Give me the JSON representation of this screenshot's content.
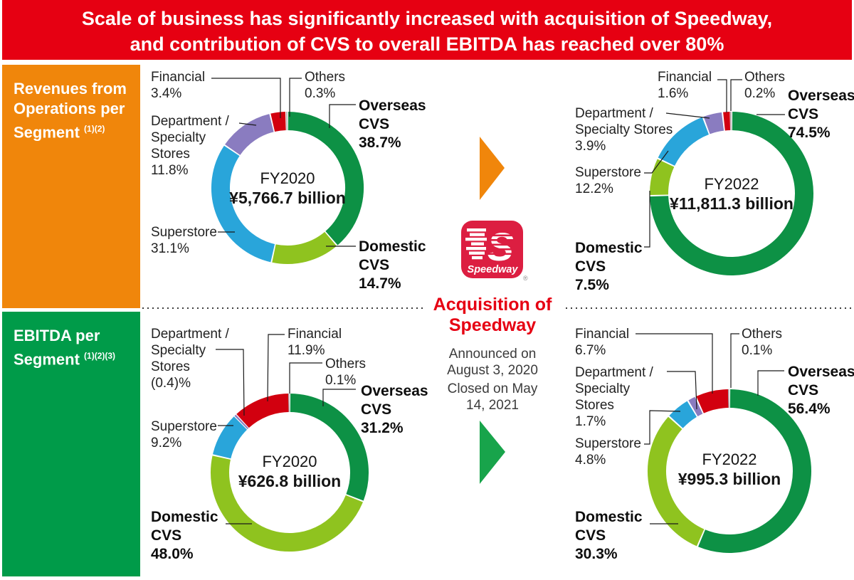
{
  "header": {
    "line1": "Scale of business has significantly increased with acquisition of Speedway,",
    "line2": "and contribution of CVS to overall EBITDA has reached over 80%"
  },
  "sidebar": {
    "revenues": {
      "title": "Revenues from Operations per Segment",
      "superscript": "(1)(2)"
    },
    "ebitda": {
      "title": "EBITDA per Segment",
      "superscript": "(1)(2)(3)"
    }
  },
  "middle": {
    "logo_letter": "S",
    "logo_text": "Speedway",
    "registered_mark": "®",
    "title_line1": "Acquisition of",
    "title_line2": "Speedway",
    "announced_line1": "Announced on",
    "announced_line2": "August 3, 2020",
    "closed_line1": "Closed on May",
    "closed_line2": "14, 2021"
  },
  "colors": {
    "header_red": "#e60012",
    "box_orange": "#f0860b",
    "box_green": "#009b49",
    "arrow_orange": "#f0860b",
    "arrow_green": "#18a44b",
    "speedway_red": "#dc1e41",
    "acquisition_red": "#e60012",
    "overseas_cvs": "#0d9145",
    "domestic_cvs": "#8fc31f",
    "superstore": "#29a5da",
    "department_specialty": "#8a7cc0",
    "financial": "#d2000f",
    "others": "#b2afb2"
  },
  "chart_data": {
    "type": "donut",
    "unit": "percent of total",
    "charts": [
      {
        "id": "revenues-fy2020",
        "fy": "FY2020",
        "total": "¥5,766.7 billion",
        "segments": [
          {
            "name": "Overseas CVS",
            "name_lines": [
              "Overseas",
              "CVS"
            ],
            "pct": "38.7%",
            "value": 38.7,
            "color": "#0d9145"
          },
          {
            "name": "Domestic CVS",
            "name_lines": [
              "Domestic",
              "CVS"
            ],
            "pct": "14.7%",
            "value": 14.7,
            "color": "#8fc31f"
          },
          {
            "name": "Superstore",
            "name_lines": [
              "Superstore"
            ],
            "pct": "31.1%",
            "value": 31.1,
            "color": "#29a5da"
          },
          {
            "name": "Department / Specialty Stores",
            "name_lines": [
              "Department /",
              "Specialty",
              "Stores"
            ],
            "pct": "11.8%",
            "value": 11.8,
            "color": "#8a7cc0"
          },
          {
            "name": "Financial",
            "name_lines": [
              "Financial"
            ],
            "pct": "3.4%",
            "value": 3.4,
            "color": "#d2000f"
          },
          {
            "name": "Others",
            "name_lines": [
              "Others"
            ],
            "pct": "0.3%",
            "value": 0.3,
            "color": "#b2afb2"
          }
        ]
      },
      {
        "id": "revenues-fy2022",
        "fy": "FY2022",
        "total": "¥11,811.3 billion",
        "segments": [
          {
            "name": "Overseas CVS",
            "name_lines": [
              "Overseas",
              "CVS"
            ],
            "pct": "74.5%",
            "value": 74.5,
            "color": "#0d9145"
          },
          {
            "name": "Domestic CVS",
            "name_lines": [
              "Domestic",
              "CVS"
            ],
            "pct": "7.5%",
            "value": 7.5,
            "color": "#8fc31f"
          },
          {
            "name": "Superstore",
            "name_lines": [
              "Superstore"
            ],
            "pct": "12.2%",
            "value": 12.2,
            "color": "#29a5da"
          },
          {
            "name": "Department / Specialty Stores",
            "name_lines": [
              "Department /",
              "Specialty Stores"
            ],
            "pct": "3.9%",
            "value": 3.9,
            "color": "#8a7cc0"
          },
          {
            "name": "Financial",
            "name_lines": [
              "Financial"
            ],
            "pct": "1.6%",
            "value": 1.6,
            "color": "#d2000f"
          },
          {
            "name": "Others",
            "name_lines": [
              "Others"
            ],
            "pct": "0.2%",
            "value": 0.2,
            "color": "#b2afb2"
          }
        ]
      },
      {
        "id": "ebitda-fy2020",
        "fy": "FY2020",
        "total": "¥626.8 billion",
        "segments": [
          {
            "name": "Overseas CVS",
            "name_lines": [
              "Overseas",
              "CVS"
            ],
            "pct": "31.2%",
            "value": 31.2,
            "color": "#0d9145"
          },
          {
            "name": "Domestic CVS",
            "name_lines": [
              "Domestic",
              "CVS"
            ],
            "pct": "48.0%",
            "value": 48.0,
            "color": "#8fc31f"
          },
          {
            "name": "Superstore",
            "name_lines": [
              "Superstore"
            ],
            "pct": "9.2%",
            "value": 9.2,
            "color": "#29a5da"
          },
          {
            "name": "Department / Specialty Stores",
            "name_lines": [
              "Department /",
              "Specialty",
              "Stores"
            ],
            "pct": "(0.4)%",
            "value": -0.4,
            "color": "#8a7cc0"
          },
          {
            "name": "Financial",
            "name_lines": [
              "Financial"
            ],
            "pct": "11.9%",
            "value": 11.9,
            "color": "#d2000f"
          },
          {
            "name": "Others",
            "name_lines": [
              "Others"
            ],
            "pct": "0.1%",
            "value": 0.1,
            "color": "#b2afb2"
          }
        ]
      },
      {
        "id": "ebitda-fy2022",
        "fy": "FY2022",
        "total": "¥995.3 billion",
        "segments": [
          {
            "name": "Overseas CVS",
            "name_lines": [
              "Overseas",
              "CVS"
            ],
            "pct": "56.4%",
            "value": 56.4,
            "color": "#0d9145"
          },
          {
            "name": "Domestic CVS",
            "name_lines": [
              "Domestic",
              "CVS"
            ],
            "pct": "30.3%",
            "value": 30.3,
            "color": "#8fc31f"
          },
          {
            "name": "Superstore",
            "name_lines": [
              "Superstore"
            ],
            "pct": "4.8%",
            "value": 4.8,
            "color": "#29a5da"
          },
          {
            "name": "Department / Specialty Stores",
            "name_lines": [
              "Department /",
              "Specialty",
              "Stores"
            ],
            "pct": "1.7%",
            "value": 1.7,
            "color": "#8a7cc0"
          },
          {
            "name": "Financial",
            "name_lines": [
              "Financial"
            ],
            "pct": "6.7%",
            "value": 6.7,
            "color": "#d2000f"
          },
          {
            "name": "Others",
            "name_lines": [
              "Others"
            ],
            "pct": "0.1%",
            "value": 0.1,
            "color": "#b2afb2"
          }
        ]
      }
    ]
  }
}
